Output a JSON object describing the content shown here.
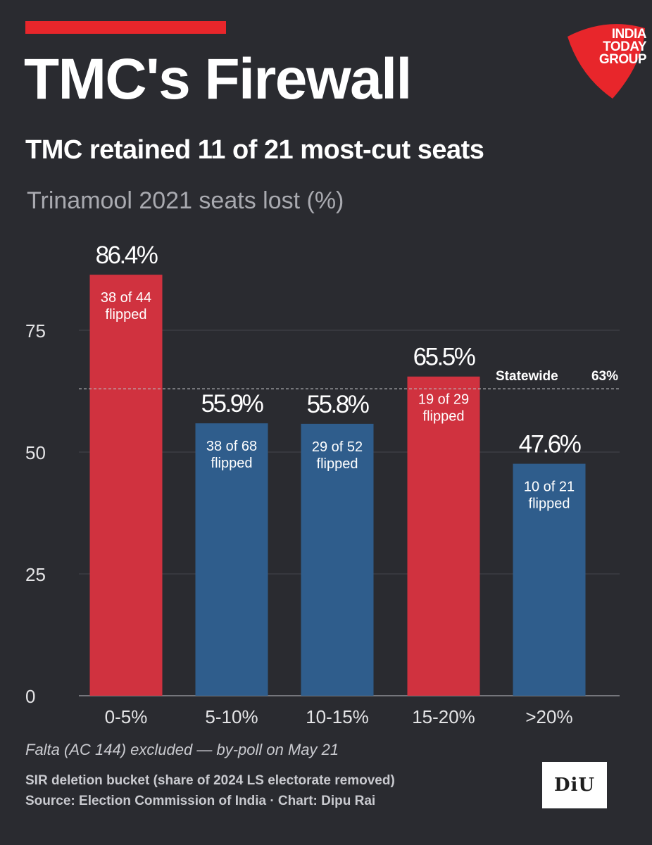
{
  "header": {
    "title": "TMC's Firewall",
    "subtitle": "TMC retained 11 of 21 most-cut seats",
    "logo_text": [
      "INDIA",
      "TODAY",
      "GROUP"
    ],
    "accent_color": "#e8262b"
  },
  "chart_data": {
    "type": "bar",
    "ylabel": "Trinamool 2021 seats lost (%)",
    "xlabel": "",
    "ylim": [
      0,
      90
    ],
    "yticks": [
      0,
      25,
      50,
      75
    ],
    "grid": true,
    "categories": [
      "0-5%",
      "5-10%",
      "10-15%",
      "15-20%",
      ">20%"
    ],
    "values": [
      86.4,
      55.9,
      55.8,
      65.5,
      47.6
    ],
    "value_labels": [
      "86.4%",
      "55.9%",
      "55.8%",
      "65.5%",
      "47.6%"
    ],
    "bar_annotations": [
      [
        "38 of 44",
        "flipped"
      ],
      [
        "38 of 68",
        "flipped"
      ],
      [
        "29 of 52",
        "flipped"
      ],
      [
        "19 of 29",
        "flipped"
      ],
      [
        "10 of 21",
        "flipped"
      ]
    ],
    "bar_colors": [
      "#d0323f",
      "#2f5d8c",
      "#2f5d8c",
      "#d0323f",
      "#2f5d8c"
    ],
    "reference_line": {
      "value": 63,
      "label": "Statewide",
      "value_label": "63%"
    }
  },
  "footer": {
    "note": "Falta (AC 144) excluded — by-poll on May 21",
    "line1": "SIR deletion bucket  (share of 2024 LS electorate removed)",
    "line2": "Source: Election Commission of India  ·  Chart: Dipu Rai",
    "badge": "DiU"
  }
}
